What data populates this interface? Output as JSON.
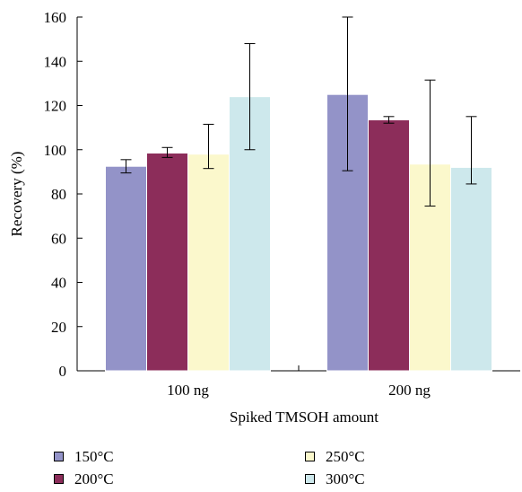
{
  "chart_data": {
    "type": "bar",
    "title": "",
    "xlabel": "Spiked TMSOH amount",
    "ylabel": "Recovery (%)",
    "ylim": [
      0,
      160
    ],
    "yticks": [
      "0",
      "20",
      "40",
      "60",
      "80",
      "100",
      "120",
      "140",
      "160"
    ],
    "categories": [
      "100 ng",
      "200 ng"
    ],
    "series": [
      {
        "name": "150°C",
        "color": "#9393c8",
        "values": [
          92.5,
          125
        ],
        "errors": [
          [
            89.5,
            95.5
          ],
          [
            90.5,
            160
          ]
        ]
      },
      {
        "name": "200°C",
        "color": "#8c2d5a",
        "values": [
          98.5,
          113.5
        ],
        "errors": [
          [
            96.5,
            101
          ],
          [
            112,
            115
          ]
        ]
      },
      {
        "name": "250°C",
        "color": "#fbf8cc",
        "values": [
          98,
          93.5
        ],
        "errors": [
          [
            91.5,
            111.5
          ],
          [
            74.5,
            131.5
          ]
        ]
      },
      {
        "name": "300°C",
        "color": "#cde8ec",
        "values": [
          124,
          92
        ],
        "errors": [
          [
            100,
            148
          ],
          [
            84.5,
            115
          ]
        ]
      }
    ],
    "grid": false,
    "legend_position": "bottom"
  }
}
